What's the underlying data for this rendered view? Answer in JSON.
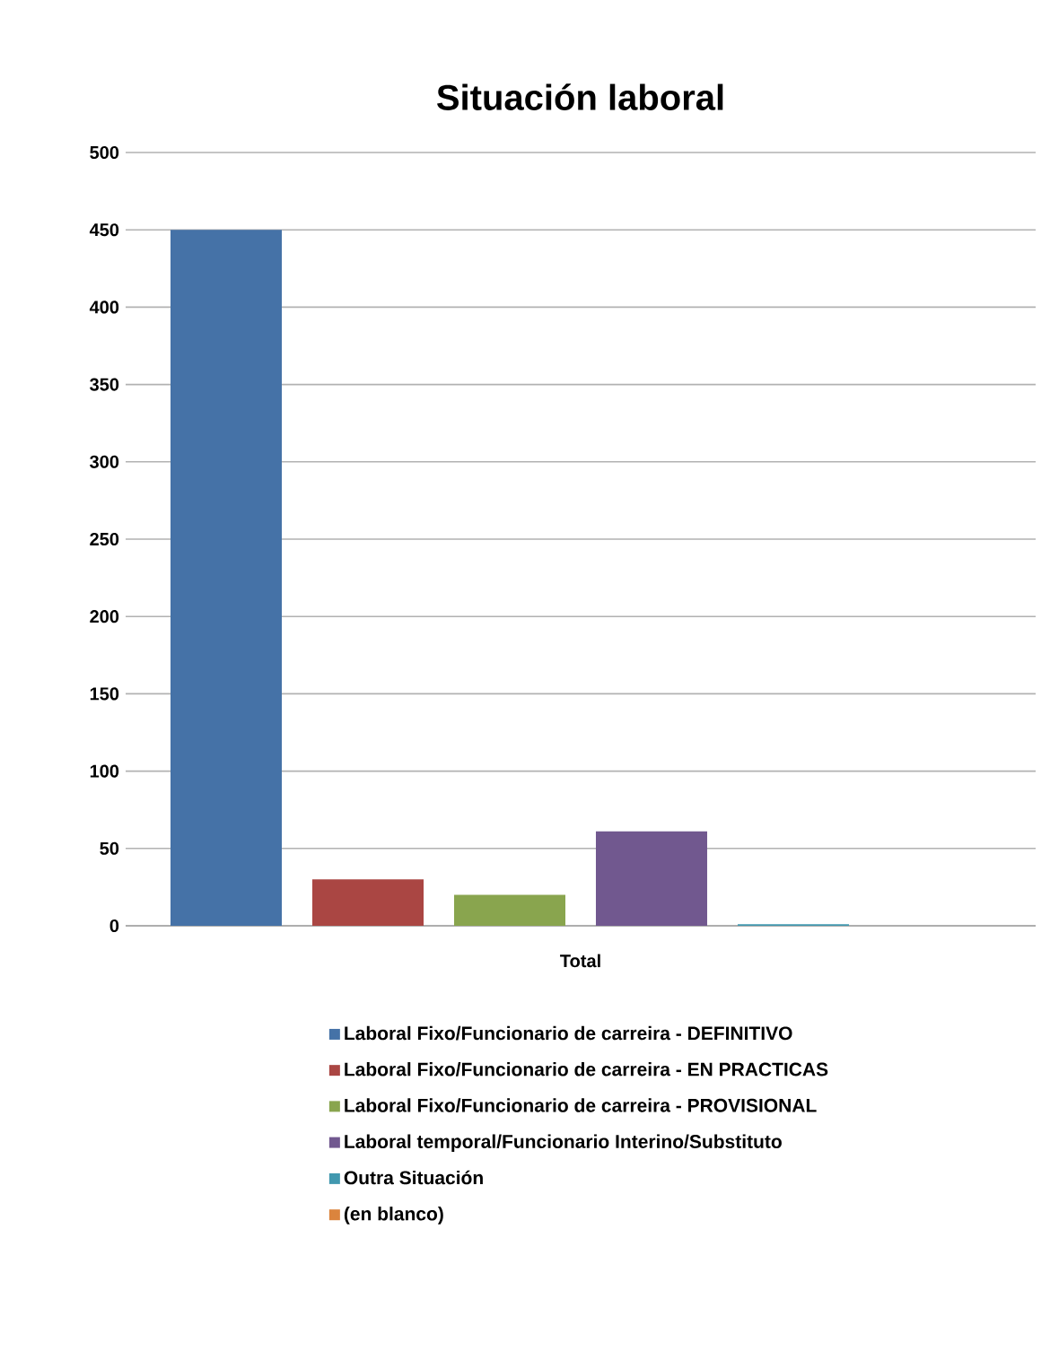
{
  "chart_data": {
    "type": "bar",
    "title": "Situación laboral",
    "categories": [
      "Total"
    ],
    "series": [
      {
        "name": "Laboral Fixo/Funcionario de carreira - DEFINITIVO",
        "color": "#4572a7",
        "values": [
          450
        ]
      },
      {
        "name": "Laboral Fixo/Funcionario de carreira - EN PRACTICAS",
        "color": "#aa4643",
        "values": [
          30
        ]
      },
      {
        "name": "Laboral Fixo/Funcionario de carreira - PROVISIONAL",
        "color": "#89a54e",
        "values": [
          20
        ]
      },
      {
        "name": "Laboral temporal/Funcionario Interino/Substituto",
        "color": "#71588f",
        "values": [
          61
        ]
      },
      {
        "name": "Outra Situación",
        "color": "#4198af",
        "values": [
          1
        ]
      },
      {
        "name": "(en blanco)",
        "color": "#db843d",
        "values": [
          0
        ]
      }
    ],
    "ylim": [
      0,
      500
    ],
    "yticks": [
      0,
      50,
      100,
      150,
      200,
      250,
      300,
      350,
      400,
      450,
      500
    ],
    "grid": "y",
    "legend": "bottom"
  }
}
